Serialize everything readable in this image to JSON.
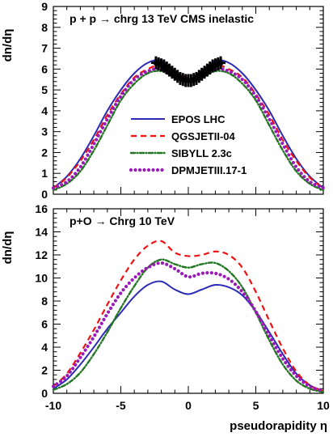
{
  "colors": {
    "EPOS LHC": "#2b2bb3",
    "QGSJETII-04": "#ee1111",
    "SIBYLL 2.3c": "#227722",
    "DPMJETIII.17-1": "#9a1ab8",
    "CMS": "#000000"
  },
  "x_axis_label": "pseudorapidity η",
  "chart_data": [
    {
      "type": "line",
      "title": "p + p → chrg 13 TeV CMS  inelastic",
      "ylabel": "dn/dη",
      "xlim": [
        -10,
        10
      ],
      "ylim": [
        0,
        9
      ],
      "yticks": [
        0,
        1,
        2,
        3,
        4,
        5,
        6,
        7,
        8,
        9
      ],
      "xticks": [
        -10,
        -5,
        0,
        5,
        10
      ],
      "legend": [
        "EPOS LHC",
        "QGSJETII-04",
        "SIBYLL 2.3c",
        "DPMJETIII.17-1"
      ],
      "legend_position": "center",
      "x": [
        -10,
        -9,
        -8,
        -7,
        -6,
        -5,
        -4,
        -3,
        -2,
        -1,
        0,
        1,
        2,
        3,
        4,
        5,
        6,
        7,
        8,
        9,
        10
      ],
      "series": [
        {
          "name": "EPOS LHC",
          "style": "solid",
          "values": [
            0.3,
            0.85,
            1.7,
            2.8,
            4.0,
            5.0,
            5.8,
            6.3,
            6.4,
            5.8,
            5.5,
            5.8,
            6.4,
            6.3,
            5.8,
            5.0,
            4.0,
            2.8,
            1.7,
            0.85,
            0.3
          ]
        },
        {
          "name": "QGSJETII-04",
          "style": "dashed",
          "values": [
            0.3,
            0.8,
            1.6,
            2.6,
            3.8,
            4.8,
            5.6,
            6.0,
            6.2,
            5.8,
            5.6,
            5.8,
            6.2,
            6.0,
            5.6,
            4.8,
            3.8,
            2.6,
            1.6,
            0.8,
            0.3
          ]
        },
        {
          "name": "SIBYLL 2.3c",
          "style": "dashdot",
          "values": [
            0.2,
            0.5,
            1.1,
            2.1,
            3.3,
            4.5,
            5.3,
            5.8,
            5.9,
            5.6,
            5.5,
            5.6,
            5.9,
            5.8,
            5.3,
            4.5,
            3.3,
            2.1,
            1.1,
            0.5,
            0.2
          ]
        },
        {
          "name": "DPMJETIII.17-1",
          "style": "dotted",
          "values": [
            0.3,
            0.6,
            1.3,
            2.4,
            3.6,
            4.7,
            5.5,
            5.9,
            6.0,
            5.6,
            5.4,
            5.6,
            6.0,
            5.9,
            5.5,
            4.7,
            3.6,
            2.4,
            1.3,
            0.6,
            0.3
          ]
        }
      ],
      "measurement": {
        "name": "CMS",
        "x": [
          -2.4,
          -2.2,
          -2.0,
          -1.8,
          -1.6,
          -1.4,
          -1.2,
          -1.0,
          -0.8,
          -0.6,
          -0.4,
          -0.2,
          0.0,
          0.2,
          0.4,
          0.6,
          0.8,
          1.0,
          1.2,
          1.4,
          1.6,
          1.8,
          2.0,
          2.2,
          2.4
        ],
        "y": [
          6.3,
          6.25,
          6.2,
          6.15,
          6.05,
          5.95,
          5.85,
          5.75,
          5.65,
          5.55,
          5.5,
          5.45,
          5.45,
          5.45,
          5.5,
          5.55,
          5.65,
          5.75,
          5.85,
          5.95,
          6.05,
          6.15,
          6.2,
          6.25,
          6.3
        ]
      }
    },
    {
      "type": "line",
      "title": "p+O  → Chrg 10 TeV",
      "ylabel": "dn/dη",
      "xlim": [
        -10,
        10
      ],
      "ylim": [
        0,
        16
      ],
      "yticks": [
        0,
        2,
        4,
        6,
        8,
        10,
        12,
        14,
        16
      ],
      "xticks": [
        -10,
        -5,
        0,
        5,
        10
      ],
      "x": [
        -10,
        -9,
        -8,
        -7,
        -6,
        -5,
        -4,
        -3,
        -2,
        -1,
        0,
        1,
        2,
        3,
        4,
        5,
        6,
        7,
        8,
        9,
        10
      ],
      "series": [
        {
          "name": "EPOS LHC",
          "style": "solid",
          "values": [
            0.4,
            1.2,
            2.5,
            4.0,
            5.6,
            7.0,
            8.4,
            9.4,
            9.7,
            9.0,
            8.6,
            9.0,
            9.4,
            9.2,
            8.5,
            7.1,
            5.3,
            3.4,
            1.7,
            0.7,
            0.2
          ]
        },
        {
          "name": "QGSJETII-04",
          "style": "dashed",
          "values": [
            0.6,
            1.7,
            3.5,
            5.5,
            7.7,
            9.8,
            11.6,
            12.8,
            13.2,
            12.2,
            11.9,
            12.0,
            12.3,
            12.0,
            10.9,
            8.8,
            6.3,
            3.9,
            1.9,
            0.7,
            0.2
          ]
        },
        {
          "name": "SIBYLL 2.3c",
          "style": "dashdot",
          "values": [
            0.3,
            0.8,
            1.8,
            3.4,
            5.3,
            7.4,
            9.3,
            10.9,
            11.6,
            11.2,
            10.9,
            11.2,
            11.3,
            10.6,
            9.2,
            7.0,
            4.6,
            2.5,
            1.1,
            0.4,
            0.1
          ]
        },
        {
          "name": "DPMJETIII.17-1",
          "style": "dotted",
          "values": [
            0.6,
            1.5,
            3.1,
            4.9,
            6.9,
            8.7,
            10.0,
            10.9,
            11.3,
            10.8,
            10.1,
            10.4,
            10.4,
            9.9,
            8.8,
            7.1,
            5.0,
            3.0,
            1.5,
            0.6,
            0.2
          ]
        }
      ]
    }
  ]
}
